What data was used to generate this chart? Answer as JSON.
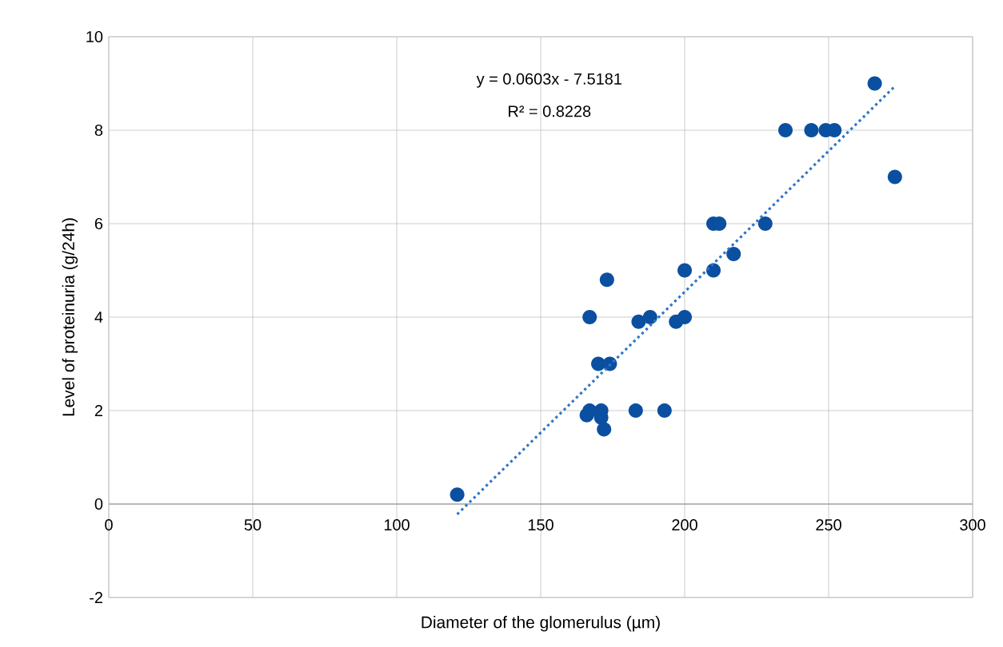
{
  "chart_data": {
    "type": "scatter",
    "xlabel": "Diameter of the glomerulus (µm)",
    "ylabel": "Level of proteinuria (g/24h)",
    "annotations": [
      "y = 0.0603x - 7.5181",
      "R² = 0.8228"
    ],
    "xlim": [
      0,
      300
    ],
    "xticks": [
      0,
      50,
      100,
      150,
      200,
      250,
      300
    ],
    "ylim": [
      -2,
      10
    ],
    "yticks": [
      -2,
      0,
      2,
      4,
      6,
      8,
      10
    ],
    "grid": true,
    "series": [
      {
        "marker": "circle",
        "color": "#0b4fa0",
        "x": [
          266,
          235,
          244,
          249,
          252,
          273,
          210,
          212,
          228,
          217,
          200,
          210,
          173,
          167,
          184,
          188,
          197,
          200,
          170,
          174,
          166,
          167,
          171,
          171,
          172,
          183,
          193,
          121
        ],
        "values": [
          9,
          8,
          8,
          8,
          8,
          7,
          6,
          6,
          6,
          5.35,
          5,
          5,
          4.8,
          4,
          3.9,
          4,
          3.9,
          4,
          3,
          3,
          1.9,
          2,
          2,
          1.85,
          1.6,
          2,
          2,
          0.2
        ]
      },
      {
        "type": "line",
        "line_style": "dotted",
        "marker": "none",
        "color": "#2e75c6",
        "x": [
          121,
          273
        ],
        "values": [
          -0.22,
          8.94
        ]
      }
    ]
  }
}
